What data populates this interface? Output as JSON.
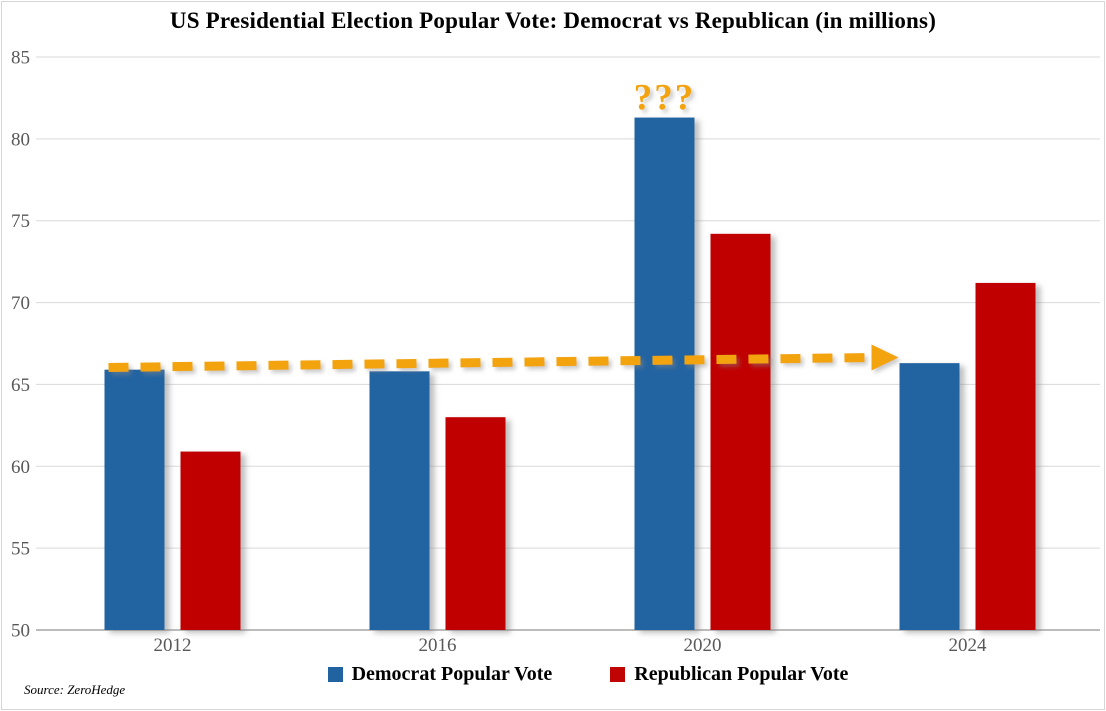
{
  "page": {
    "title": "US Presidential Election Popular Vote: Democrat vs Republican (in millions)",
    "source": "Source: ZeroHedge"
  },
  "colors": {
    "democrat": "#2163A1",
    "republican": "#C00404",
    "annotation_orange": "#F2A30D",
    "gridline": "#D9D9D9",
    "axis_line": "#A6A6A6",
    "tick_text": "#595959",
    "frame_border": "#D6D6D6"
  },
  "chart_data": {
    "type": "bar",
    "title": "US Presidential Election Popular Vote: Democrat vs Republican (in millions)",
    "categories": [
      "2012",
      "2016",
      "2020",
      "2024"
    ],
    "series": [
      {
        "name": "Democrat Popular Vote",
        "color_key": "democrat",
        "values": [
          65.9,
          65.8,
          81.3,
          66.3
        ]
      },
      {
        "name": "Republican Popular Vote",
        "color_key": "republican",
        "values": [
          60.9,
          63.0,
          74.2,
          71.2
        ]
      }
    ],
    "ylim": [
      50,
      85
    ],
    "ytick_step": 5,
    "ytick_labels": [
      "50",
      "55",
      "60",
      "65",
      "70",
      "75",
      "80",
      "85"
    ],
    "grid": true,
    "legend_position": "bottom",
    "annotations": [
      {
        "type": "text",
        "text": "???",
        "anchor": "above 2020 Democrat bar"
      },
      {
        "type": "dashed-arrow",
        "from_category": "2012",
        "to_category": "2024",
        "at_value": 66.3,
        "meaning": "Democrat vote flat near 66M except 2020"
      }
    ]
  }
}
